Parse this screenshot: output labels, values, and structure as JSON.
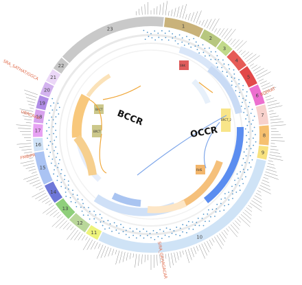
{
  "diagram": {
    "center_labels": {
      "left": "BCCR",
      "right": "OCCR"
    },
    "segments": [
      {
        "id": "1",
        "color": "#c9b27a",
        "weight": 6
      },
      {
        "id": "2",
        "color": "#b7c77f",
        "weight": 3
      },
      {
        "id": "3",
        "color": "#c1d98a",
        "weight": 2
      },
      {
        "id": "4",
        "color": "#e65b57",
        "weight": 3
      },
      {
        "id": "5",
        "color": "#e2494a",
        "weight": 3
      },
      {
        "id": "6",
        "color": "#ec6fcf",
        "weight": 3
      },
      {
        "id": "7",
        "color": "#f7d1cc",
        "weight": 3
      },
      {
        "id": "8",
        "color": "#f6c06f",
        "weight": 3
      },
      {
        "id": "9",
        "color": "#f8e27e",
        "weight": 2
      },
      {
        "id": "10",
        "color": "#cfe3f6",
        "weight": 32
      },
      {
        "id": "11",
        "color": "#edf37a",
        "weight": 2
      },
      {
        "id": "12",
        "color": "#b9d79a",
        "weight": 3
      },
      {
        "id": "13",
        "color": "#8fcf7b",
        "weight": 3
      },
      {
        "id": "14",
        "color": "#6e77d8",
        "weight": 3
      },
      {
        "id": "15",
        "color": "#aac3f3",
        "weight": 5
      },
      {
        "id": "16",
        "color": "#cfe2f7",
        "weight": 2
      },
      {
        "id": "17",
        "color": "#e7a1f3",
        "weight": 2
      },
      {
        "id": "18",
        "color": "#d7a2ee",
        "weight": 2
      },
      {
        "id": "19",
        "color": "#b08ce6",
        "weight": 2
      },
      {
        "id": "20",
        "color": "#d3b3ef",
        "weight": 2
      },
      {
        "id": "21",
        "color": "#ebd7f7",
        "weight": 2
      },
      {
        "id": "22",
        "color": "#c7c7c7",
        "weight": 2
      },
      {
        "id": "23",
        "color": "#c9c9c9",
        "weight": 17
      }
    ],
    "inner_box_labels": [
      "BRCT",
      "BRCT",
      "BRCT",
      "BRCT_2",
      "SNK",
      "RHS"
    ],
    "annotations": [
      "SRA_SATHAT/GGCA",
      "BDPAAT",
      "UBRCAAA",
      "FMBIPR",
      "SIRA_GAHAGACAR"
    ]
  }
}
